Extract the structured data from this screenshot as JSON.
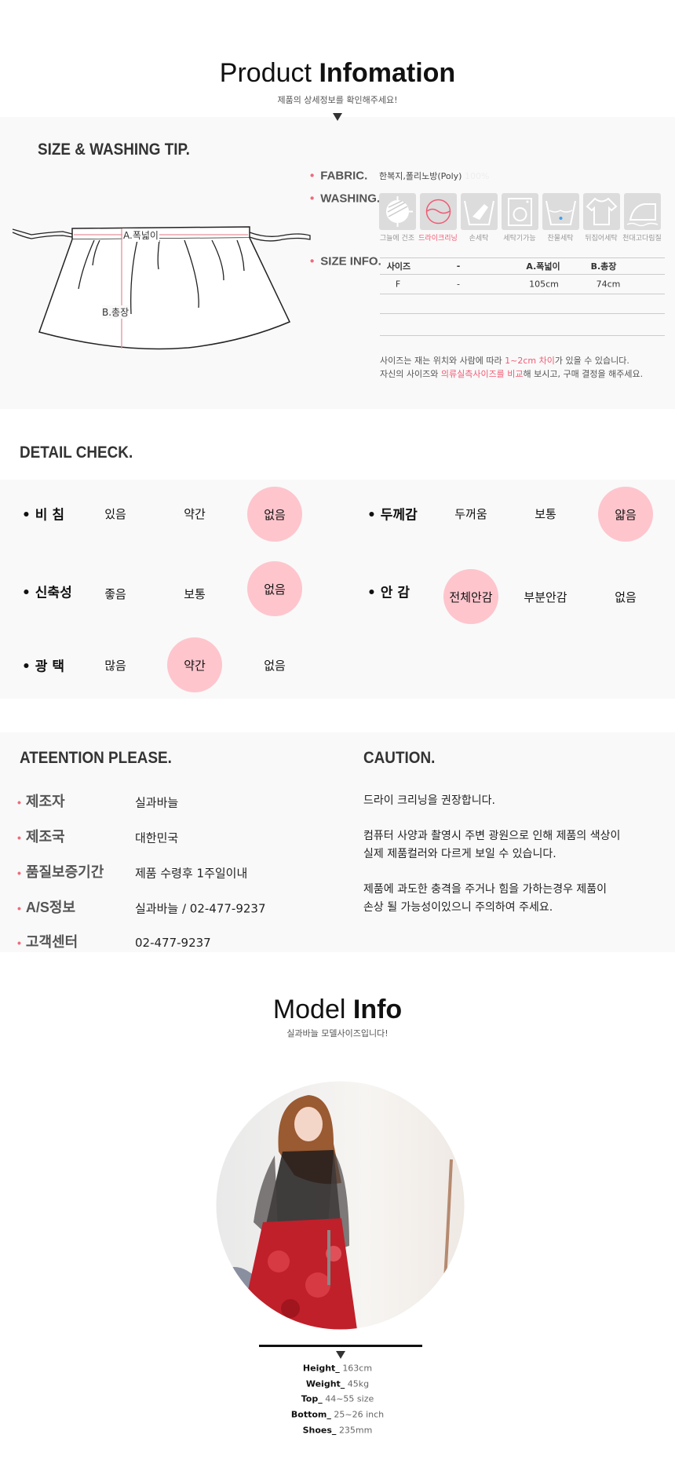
{
  "header": {
    "title_light": "Product",
    "title_bold": "Infomation",
    "subtitle": "제품의 상세정보를 확인해주세요!"
  },
  "size_washing": {
    "title": "SIZE & WASHING TIP.",
    "diagram": {
      "width_label": "A.폭넓이",
      "length_label": "B.총장"
    },
    "fabric_label": "FABRIC.",
    "fabric_value": "한복지,폴리노방(Poly)",
    "fabric_extra": "100%",
    "washing_label": "WASHING.",
    "washing_icons": [
      {
        "icon": "shade-dry-icon",
        "label": "그늘에 건조",
        "active": false
      },
      {
        "icon": "dry-clean-icon",
        "label": "드라이크리닝",
        "active": true
      },
      {
        "icon": "hand-wash-icon",
        "label": "손세탁",
        "active": false
      },
      {
        "icon": "machine-wash-icon",
        "label": "세탁기가능",
        "active": false
      },
      {
        "icon": "cold-wash-icon",
        "label": "찬물세탁",
        "active": false
      },
      {
        "icon": "inside-out-wash-icon",
        "label": "뒤집어세탁",
        "active": false
      },
      {
        "icon": "iron-with-cloth-icon",
        "label": "천대고다림질",
        "active": false
      }
    ],
    "size_label": "SIZE INFO.",
    "size_table": {
      "headers": [
        "사이즈",
        "-",
        "A.폭넓이",
        "B.총장"
      ],
      "rows": [
        [
          "F",
          "-",
          "105cm",
          "74cm"
        ]
      ]
    },
    "note1": {
      "a": "사이즈는 재는 위치와 사람에 따라 ",
      "b": "1~2cm 차이",
      "c": "가 있을 수 있습니다."
    },
    "note2": {
      "a": "자신의 사이즈와 ",
      "b": "의류실측사이즈를 비교",
      "c": "해 보시고, 구매 결정을 해주세요."
    },
    "accent": "#f05a73"
  },
  "detail": {
    "title": "DETAIL CHECK.",
    "rows": [
      {
        "label": "비 침",
        "options": [
          "있음",
          "약간",
          "없음"
        ],
        "selected": 2
      },
      {
        "label": "두께감",
        "options": [
          "두꺼움",
          "보통",
          "얇음"
        ],
        "selected": 2
      },
      {
        "label": "신축성",
        "options": [
          "좋음",
          "보통",
          "없음"
        ],
        "selected": 2
      },
      {
        "label": "안 감",
        "options": [
          "전체안감",
          "부분안감",
          "없음"
        ],
        "selected": 0
      },
      {
        "label": "광 택",
        "options": [
          "많음",
          "약간",
          "없음"
        ],
        "selected": 1
      }
    ],
    "highlight": "#fec5cd"
  },
  "attention": {
    "title": "ATEENTION PLEASE.",
    "items": [
      {
        "label": "제조자",
        "value": "실과바늘"
      },
      {
        "label": "제조국",
        "value": "대한민국"
      },
      {
        "label": "품질보증기간",
        "value": "제품 수령후 1주일이내"
      },
      {
        "label": "A/S정보",
        "value": "실과바늘 / 02-477-9237"
      },
      {
        "label": "고객센터",
        "value": "02-477-9237"
      }
    ]
  },
  "caution": {
    "title": "CAUTION.",
    "lines": [
      "드라이 크리닝을 권장합니다.",
      "컴퓨터 사양과 촬영시 주변 광원으로 인해 제품의 색상이",
      "실제 제품컬러와 다르게 보일 수 있습니다.",
      "제품에 과도한 충격을 주거나 힘을 가하는경우 제품이",
      "손상 될 가능성이있으니 주의하여 주세요."
    ]
  },
  "model": {
    "title_light": "Model",
    "title_bold": "Info",
    "subtitle": "실과바늘 모델사이즈입니다!",
    "specs": [
      {
        "label": "Height_",
        "value": "163cm"
      },
      {
        "label": "Weight_",
        "value": "45kg"
      },
      {
        "label": "Top_",
        "value": "44~55 size"
      },
      {
        "label": "Bottom_",
        "value": "25~26 inch"
      },
      {
        "label": "Shoes_",
        "value": "235mm"
      }
    ]
  }
}
